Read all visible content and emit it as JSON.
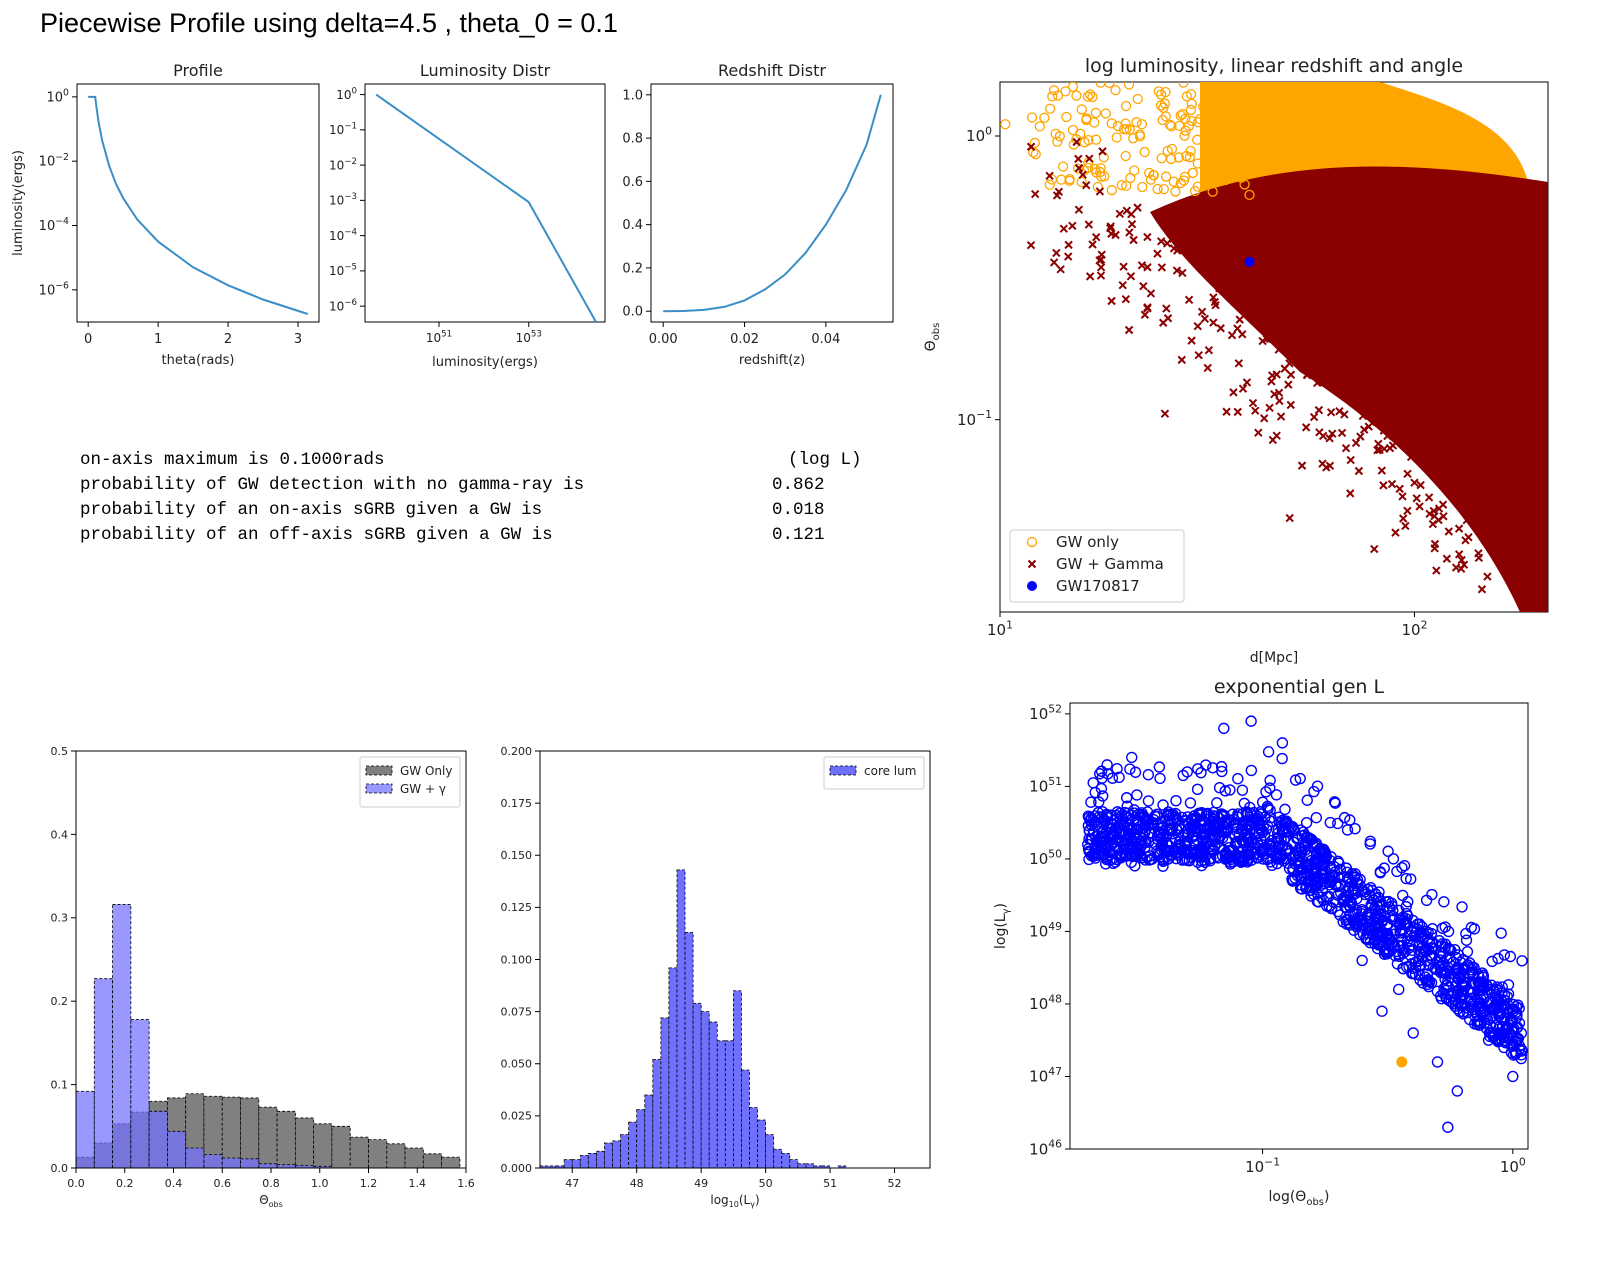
{
  "figure_title": "Piecewise Profile using delta=4.5 , theta_0 = 0.1",
  "stats": {
    "header": "(log L)",
    "rows": [
      {
        "label": "on-axis maximum is 0.1000rads",
        "value": ""
      },
      {
        "label": "probability of GW detection with no gamma-ray is",
        "value": "0.862"
      },
      {
        "label": "probability of an on-axis sGRB given a GW is",
        "value": "0.018"
      },
      {
        "label": "probability of an off-axis sGRB given a GW is",
        "value": "0.121"
      }
    ]
  },
  "colors": {
    "line": "#3a8ec6",
    "gw_only": "#ffa500",
    "gw_gamma": "#8b0000",
    "gw170817": "#0000ff",
    "hist_gw_only": "#808080",
    "hist_gw_gamma": "#7070ff",
    "scatter_blue": "#0000ff",
    "highlight": "#ffa500"
  },
  "chart_data": [
    {
      "id": "profile",
      "type": "line",
      "title": "Profile",
      "xlabel": "theta(rads)",
      "ylabel": "luminosity(ergs)",
      "xlim": [
        -0.16,
        3.3
      ],
      "ylim_log10": [
        -7.0,
        0.4
      ],
      "yscale": "log",
      "xticks": [
        0,
        1,
        2,
        3
      ],
      "xtick_labels": [
        "0",
        "1",
        "2",
        "3"
      ],
      "yticks_log10": [
        0,
        -2,
        -4,
        -6
      ],
      "ytick_labels": [
        "10^0",
        "10^-2",
        "10^-4",
        "10^-6"
      ],
      "x": [
        0.0,
        0.1,
        0.12,
        0.15,
        0.2,
        0.3,
        0.4,
        0.5,
        0.7,
        1.0,
        1.5,
        2.0,
        2.5,
        3.14
      ],
      "y_log10": [
        0,
        0,
        -0.36,
        -0.8,
        -1.36,
        -2.15,
        -2.72,
        -3.15,
        -3.81,
        -4.5,
        -5.3,
        -5.86,
        -6.3,
        -6.75
      ]
    },
    {
      "id": "luminosity-distr",
      "type": "line",
      "title": "Luminosity Distr",
      "xlabel": "luminosity(ergs)",
      "xscale": "log",
      "yscale": "log",
      "xlim_log10": [
        49.35,
        54.7
      ],
      "ylim_log10": [
        -6.45,
        0.3
      ],
      "xticks_log10": [
        51,
        53
      ],
      "xtick_labels": [
        "10^51",
        "10^53"
      ],
      "yticks_log10": [
        0,
        -1,
        -2,
        -3,
        -4,
        -5,
        -6
      ],
      "ytick_labels": [
        "10^0",
        "10^-1",
        "10^-2",
        "10^-3",
        "10^-4",
        "10^-5",
        "10^-6"
      ],
      "x_log10": [
        49.6,
        53.0,
        54.5
      ],
      "y_log10": [
        0.0,
        -3.05,
        -6.45
      ]
    },
    {
      "id": "redshift-distr",
      "type": "line",
      "title": "Redshift Distr",
      "xlabel": "redshift(z)",
      "xlim": [
        -0.003,
        0.0565
      ],
      "ylim": [
        -0.05,
        1.05
      ],
      "xticks": [
        0.0,
        0.02,
        0.04
      ],
      "xtick_labels": [
        "0.00",
        "0.02",
        "0.04"
      ],
      "yticks": [
        0.0,
        0.2,
        0.4,
        0.6,
        0.8,
        1.0
      ],
      "ytick_labels": [
        "0.0",
        "0.2",
        "0.4",
        "0.6",
        "0.8",
        "1.0"
      ],
      "x": [
        0.0,
        0.005,
        0.01,
        0.015,
        0.02,
        0.025,
        0.03,
        0.035,
        0.04,
        0.045,
        0.05,
        0.0535
      ],
      "y": [
        0.0,
        0.001,
        0.006,
        0.02,
        0.05,
        0.1,
        0.17,
        0.27,
        0.4,
        0.56,
        0.77,
        1.0
      ]
    },
    {
      "id": "log-luminosity-scatter",
      "type": "scatter",
      "title": "log luminosity, linear redshift and angle",
      "xlabel": "d[Mpc]",
      "ylabel": "Θ_obs",
      "xscale": "log",
      "yscale": "log",
      "xlim": [
        10,
        210
      ],
      "ylim": [
        0.021,
        1.55
      ],
      "xticks": [
        10,
        100
      ],
      "xtick_labels": [
        "10^1",
        "10^2"
      ],
      "yticks": [
        1,
        0.1
      ],
      "ytick_labels": [
        "10^0",
        "10^-1"
      ],
      "legend_position": "lower-left",
      "series": [
        {
          "name": "GW only",
          "marker": "open-circle",
          "color": "#ffa500",
          "points": [
            [
              10.3,
              1.1
            ],
            [
              14.2,
              0.78
            ],
            [
              15.0,
              1.05
            ],
            [
              16.0,
              0.95
            ],
            [
              18.0,
              1.2
            ],
            [
              20.1,
              0.85
            ],
            [
              22.0,
              1.1
            ],
            [
              24.0,
              0.65
            ],
            [
              26.0,
              0.9
            ],
            [
              28.0,
              1.15
            ],
            [
              30.0,
              0.8
            ],
            [
              32.0,
              1.3
            ],
            [
              35.0,
              0.7
            ],
            [
              38.0,
              1.0
            ],
            [
              40.0,
              0.62
            ],
            [
              16.5,
              1.4
            ],
            [
              19.0,
              1.45
            ],
            [
              13.5,
              1.45
            ],
            [
              21.5,
              1.35
            ],
            [
              25.0,
              1.3
            ]
          ]
        },
        {
          "name": "GW + Gamma",
          "marker": "x",
          "color": "#8b0000",
          "points": [
            [
              15.5,
              0.55
            ],
            [
              16.5,
              0.32
            ],
            [
              18.5,
              0.48
            ],
            [
              22.0,
              0.35
            ],
            [
              25.0,
              0.105
            ],
            [
              21.0,
              0.43
            ],
            [
              29.0,
              0.19
            ],
            [
              33.0,
              0.26
            ],
            [
              42.0,
              0.09
            ],
            [
              45.0,
              0.2
            ],
            [
              50.0,
              0.045
            ],
            [
              55.0,
              0.16
            ],
            [
              60.0,
              0.07
            ],
            [
              70.0,
              0.055
            ],
            [
              80.0,
              0.035
            ],
            [
              90.0,
              0.04
            ],
            [
              100.0,
              0.06
            ],
            [
              130.0,
              0.032
            ],
            [
              150.0,
              0.028
            ],
            [
              180.0,
              0.025
            ]
          ]
        },
        {
          "name": "GW170817",
          "marker": "filled-circle",
          "color": "#0000ff",
          "points": [
            [
              40.0,
              0.36
            ]
          ]
        }
      ]
    },
    {
      "id": "theta-histogram",
      "type": "bar",
      "xlabel": "Θ_obs",
      "xlim": [
        0.0,
        1.6
      ],
      "ylim": [
        0.0,
        0.5
      ],
      "xticks": [
        0.0,
        0.2,
        0.4,
        0.6,
        0.8,
        1.0,
        1.2,
        1.4,
        1.6
      ],
      "xtick_labels": [
        "0.0",
        "0.2",
        "0.4",
        "0.6",
        "0.8",
        "1.0",
        "1.2",
        "1.4",
        "1.6"
      ],
      "yticks": [
        0.0,
        0.1,
        0.2,
        0.3,
        0.4,
        0.5
      ],
      "ytick_labels": [
        "0.0",
        "0.1",
        "0.2",
        "0.3",
        "0.4",
        "0.5"
      ],
      "legend_position": "top-right",
      "bin_edges": [
        0.0,
        0.075,
        0.15,
        0.225,
        0.3,
        0.375,
        0.45,
        0.525,
        0.6,
        0.675,
        0.75,
        0.825,
        0.9,
        0.975,
        1.05,
        1.125,
        1.2,
        1.275,
        1.35,
        1.425,
        1.5,
        1.575
      ],
      "series": [
        {
          "name": "GW Only",
          "color": "#808080",
          "values": [
            0.013,
            0.03,
            0.053,
            0.067,
            0.08,
            0.084,
            0.089,
            0.086,
            0.085,
            0.084,
            0.073,
            0.068,
            0.06,
            0.053,
            0.05,
            0.037,
            0.034,
            0.029,
            0.024,
            0.017,
            0.013
          ]
        },
        {
          "name": "GW + γ",
          "color": "#7070ff",
          "values": [
            0.092,
            0.227,
            0.316,
            0.178,
            0.068,
            0.044,
            0.024,
            0.016,
            0.012,
            0.011,
            0.005,
            0.004,
            0.003,
            0.002,
            0.0,
            0.0,
            0.0,
            0.0,
            0.0,
            0.0,
            0.0
          ]
        }
      ]
    },
    {
      "id": "core-lum-histogram",
      "type": "bar",
      "xlabel": "log10(Lγ)",
      "xlim": [
        46.5,
        52.55
      ],
      "ylim": [
        0.0,
        0.2
      ],
      "xticks": [
        47,
        48,
        49,
        50,
        51,
        52
      ],
      "xtick_labels": [
        "47",
        "48",
        "49",
        "50",
        "51",
        "52"
      ],
      "yticks": [
        0.0,
        0.025,
        0.05,
        0.075,
        0.1,
        0.125,
        0.15,
        0.175,
        0.2
      ],
      "ytick_labels": [
        "0.000",
        "0.025",
        "0.050",
        "0.075",
        "0.100",
        "0.125",
        "0.150",
        "0.175",
        "0.200"
      ],
      "legend_position": "top-right",
      "bin_edges": [
        46.5,
        46.75,
        46.875,
        47.0,
        47.125,
        47.25,
        47.375,
        47.5,
        47.625,
        47.75,
        47.875,
        48.0,
        48.125,
        48.25,
        48.375,
        48.5,
        48.625,
        48.75,
        48.875,
        49.0,
        49.125,
        49.25,
        49.375,
        49.5,
        49.625,
        49.75,
        49.875,
        50.0,
        50.125,
        50.25,
        50.375,
        50.5,
        50.625,
        50.75,
        50.875,
        51.0,
        51.125,
        51.25,
        51.375,
        51.5,
        51.625,
        51.75,
        51.875,
        52.0,
        52.125,
        52.25
      ],
      "series": [
        {
          "name": "core lum",
          "color": "#7070ff",
          "values": [
            0.001,
            0.001,
            0.004,
            0.004,
            0.006,
            0.007,
            0.008,
            0.012,
            0.013,
            0.016,
            0.022,
            0.028,
            0.035,
            0.052,
            0.072,
            0.096,
            0.143,
            0.113,
            0.079,
            0.075,
            0.07,
            0.061,
            0.061,
            0.085,
            0.047,
            0.029,
            0.023,
            0.016,
            0.009,
            0.007,
            0.004,
            0.002,
            0.002,
            0.001,
            0.001,
            0.0,
            0.001,
            0.0,
            0.0,
            0.0,
            0.0,
            0.0,
            0.0,
            0.0,
            0.0
          ]
        }
      ]
    },
    {
      "id": "exponential-gen-scatter",
      "type": "scatter",
      "title": "exponential gen L",
      "xlabel": "log(Θ_obs)",
      "ylabel": "log(L_γ)",
      "xscale": "log",
      "yscale": "log",
      "xlim": [
        0.017,
        1.15
      ],
      "ylim_log10": [
        46.0,
        52.15
      ],
      "xticks": [
        0.1,
        1.0
      ],
      "xtick_labels": [
        "10^-1",
        "10^0"
      ],
      "yticks_log10": [
        46,
        47,
        48,
        49,
        50,
        51,
        52
      ],
      "ytick_labels": [
        "10^46",
        "10^47",
        "10^48",
        "10^49",
        "10^50",
        "10^51",
        "10^52"
      ],
      "series": [
        {
          "name": "",
          "marker": "open-circle",
          "color": "#0000ff",
          "points_log10y": [
            [
              0.02,
              50.2
            ],
            [
              0.025,
              50.6
            ],
            [
              0.03,
              51.4
            ],
            [
              0.035,
              50.8
            ],
            [
              0.04,
              49.9
            ],
            [
              0.05,
              51.2
            ],
            [
              0.06,
              50.4
            ],
            [
              0.07,
              51.8
            ],
            [
              0.08,
              50.0
            ],
            [
              0.09,
              51.9
            ],
            [
              0.1,
              50.1
            ],
            [
              0.12,
              51.6
            ],
            [
              0.15,
              50.5
            ],
            [
              0.2,
              49.5
            ],
            [
              0.25,
              48.6
            ],
            [
              0.3,
              47.9
            ],
            [
              0.4,
              47.6
            ],
            [
              0.5,
              47.2
            ],
            [
              0.6,
              46.8
            ],
            [
              0.8,
              47.5
            ],
            [
              1.0,
              47.0
            ],
            [
              0.7,
              48.5
            ],
            [
              0.45,
              49.0
            ],
            [
              0.35,
              48.2
            ],
            [
              0.55,
              46.3
            ]
          ]
        },
        {
          "name": "",
          "marker": "filled-circle",
          "color": "#ffa500",
          "points_log10y": [
            [
              0.36,
              47.2
            ]
          ]
        }
      ]
    }
  ]
}
